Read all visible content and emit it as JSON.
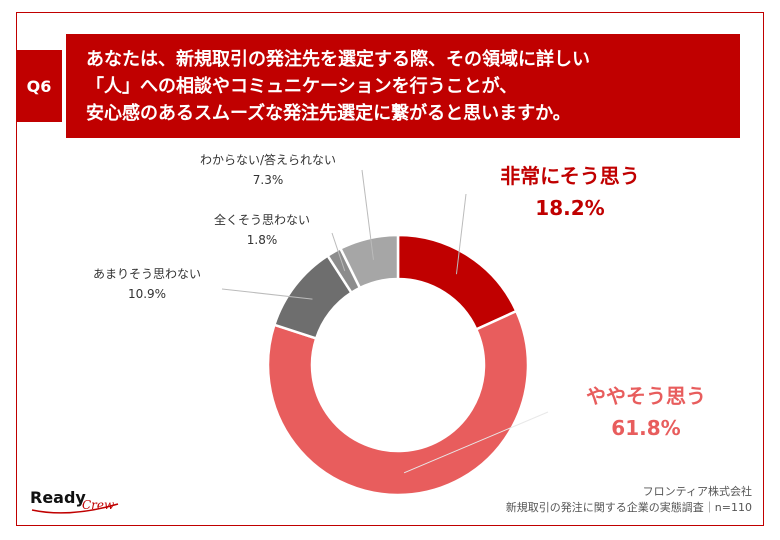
{
  "question": {
    "badge": "Q6",
    "lines": [
      "あなたは、新規取引の発注先を選定する際、その領域に詳しい",
      "「人」への相談やコミュニケーションを行うことが、",
      "安心感のあるスムーズな発注先選定に繋がると思いますか。"
    ]
  },
  "chart_data": {
    "type": "pie",
    "donut": true,
    "categories": [
      "非常にそう思う",
      "ややそう思う",
      "あまりそう思わない",
      "全くそう思わない",
      "わからない/答えられない"
    ],
    "values": [
      18.2,
      61.8,
      10.9,
      1.8,
      7.3
    ],
    "value_labels": [
      "18.2%",
      "61.8%",
      "10.9%",
      "1.8%",
      "7.3%"
    ],
    "colors": [
      "#c00000",
      "#e85d5d",
      "#6e6e6e",
      "#8c8c8c",
      "#a6a6a6"
    ],
    "label_colors": [
      "#c00000",
      "#e85d5d",
      "#333333",
      "#333333",
      "#333333"
    ]
  },
  "footer": {
    "company": "フロンティア株式会社",
    "survey": "新規取引の発注に関する企業の実態調査｜n=110"
  },
  "logo": {
    "text1": "Ready",
    "text2": "Crew"
  }
}
